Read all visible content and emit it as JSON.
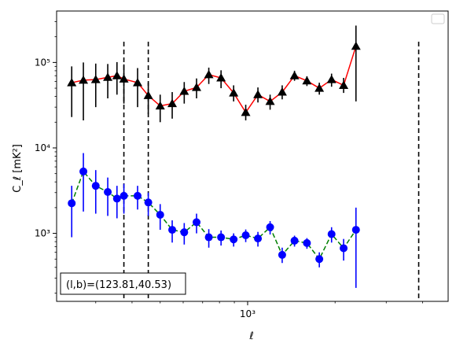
{
  "chart_data": {
    "type": "scatter",
    "xscale": "log",
    "yscale": "log",
    "xlabel": "ℓ",
    "ylabel": "C_ℓ  [mK²]",
    "xlim": [
      220,
      4900
    ],
    "ylim": [
      160,
      400000
    ],
    "xticks": [
      {
        "value": 1000,
        "label": "10³"
      }
    ],
    "yticks": [
      {
        "value": 1000,
        "label": "10³"
      },
      {
        "value": 10000,
        "label": "10⁴"
      },
      {
        "value": 100000,
        "label": "10⁵"
      }
    ],
    "legend": "top-right, empty",
    "vlines": [
      {
        "x": 375,
        "color": "#000000",
        "style": "dashed"
      },
      {
        "x": 455,
        "color": "#000000",
        "style": "dashed"
      },
      {
        "x": 3880,
        "color": "#000000",
        "style": "dashed"
      }
    ],
    "series": [
      {
        "marker": "triangle",
        "marker_color": "#000000",
        "line_color": "#ff0000",
        "line_style": "solid",
        "error_color": "#000000",
        "points": [
          {
            "x": 248,
            "y": 58000,
            "ylo": 23000,
            "yhi": 90000
          },
          {
            "x": 272,
            "y": 62000,
            "ylo": 21000,
            "yhi": 100000
          },
          {
            "x": 300,
            "y": 63000,
            "ylo": 30000,
            "yhi": 97000
          },
          {
            "x": 330,
            "y": 67000,
            "ylo": 38000,
            "yhi": 96000
          },
          {
            "x": 355,
            "y": 70000,
            "ylo": 42000,
            "yhi": 101000
          },
          {
            "x": 375,
            "y": 64000,
            "ylo": 33000,
            "yhi": 95000
          },
          {
            "x": 418,
            "y": 58000,
            "ylo": 30000,
            "yhi": 86000
          },
          {
            "x": 455,
            "y": 41000,
            "ylo": 25000,
            "yhi": 58000
          },
          {
            "x": 500,
            "y": 31000,
            "ylo": 20000,
            "yhi": 42000
          },
          {
            "x": 550,
            "y": 33000,
            "ylo": 22000,
            "yhi": 45000
          },
          {
            "x": 605,
            "y": 46000,
            "ylo": 33000,
            "yhi": 59000
          },
          {
            "x": 667,
            "y": 51000,
            "ylo": 38000,
            "yhi": 65000
          },
          {
            "x": 735,
            "y": 72000,
            "ylo": 56000,
            "yhi": 87000
          },
          {
            "x": 810,
            "y": 66000,
            "ylo": 50000,
            "yhi": 81000
          },
          {
            "x": 895,
            "y": 44000,
            "ylo": 35000,
            "yhi": 54000
          },
          {
            "x": 985,
            "y": 26000,
            "ylo": 21000,
            "yhi": 32000
          },
          {
            "x": 1085,
            "y": 42000,
            "ylo": 34000,
            "yhi": 51000
          },
          {
            "x": 1195,
            "y": 35000,
            "ylo": 28000,
            "yhi": 42000
          },
          {
            "x": 1315,
            "y": 45000,
            "ylo": 37000,
            "yhi": 54000
          },
          {
            "x": 1450,
            "y": 70000,
            "ylo": 61000,
            "yhi": 80000
          },
          {
            "x": 1600,
            "y": 61000,
            "ylo": 53000,
            "yhi": 69000
          },
          {
            "x": 1765,
            "y": 50000,
            "ylo": 42000,
            "yhi": 58000
          },
          {
            "x": 1945,
            "y": 63000,
            "ylo": 52000,
            "yhi": 74000
          },
          {
            "x": 2140,
            "y": 54000,
            "ylo": 44000,
            "yhi": 66000
          },
          {
            "x": 2360,
            "y": 155000,
            "ylo": 35000,
            "yhi": 270000
          }
        ]
      },
      {
        "marker": "circle",
        "marker_color": "#0000ff",
        "line_color": "#008000",
        "line_style": "dashed",
        "error_color": "#0000ff",
        "points": [
          {
            "x": 248,
            "y": 2250,
            "ylo": 900,
            "yhi": 3600
          },
          {
            "x": 272,
            "y": 5300,
            "ylo": 1800,
            "yhi": 8700
          },
          {
            "x": 300,
            "y": 3600,
            "ylo": 1700,
            "yhi": 5500
          },
          {
            "x": 330,
            "y": 3050,
            "ylo": 1600,
            "yhi": 4500
          },
          {
            "x": 355,
            "y": 2550,
            "ylo": 1500,
            "yhi": 3600
          },
          {
            "x": 375,
            "y": 2750,
            "ylo": 1700,
            "yhi": 3800
          },
          {
            "x": 418,
            "y": 2750,
            "ylo": 1900,
            "yhi": 3600
          },
          {
            "x": 455,
            "y": 2300,
            "ylo": 1600,
            "yhi": 3000
          },
          {
            "x": 500,
            "y": 1650,
            "ylo": 1100,
            "yhi": 2200
          },
          {
            "x": 550,
            "y": 1100,
            "ylo": 780,
            "yhi": 1420
          },
          {
            "x": 605,
            "y": 1030,
            "ylo": 740,
            "yhi": 1320
          },
          {
            "x": 667,
            "y": 1350,
            "ylo": 1000,
            "yhi": 1700
          },
          {
            "x": 735,
            "y": 900,
            "ylo": 680,
            "yhi": 1120
          },
          {
            "x": 810,
            "y": 900,
            "ylo": 720,
            "yhi": 1080
          },
          {
            "x": 895,
            "y": 850,
            "ylo": 700,
            "yhi": 1000
          },
          {
            "x": 985,
            "y": 950,
            "ylo": 790,
            "yhi": 1110
          },
          {
            "x": 1085,
            "y": 870,
            "ylo": 700,
            "yhi": 1040
          },
          {
            "x": 1195,
            "y": 1180,
            "ylo": 970,
            "yhi": 1390
          },
          {
            "x": 1315,
            "y": 560,
            "ylo": 450,
            "yhi": 680
          },
          {
            "x": 1450,
            "y": 820,
            "ylo": 700,
            "yhi": 940
          },
          {
            "x": 1600,
            "y": 770,
            "ylo": 660,
            "yhi": 880
          },
          {
            "x": 1765,
            "y": 500,
            "ylo": 400,
            "yhi": 600
          },
          {
            "x": 1945,
            "y": 980,
            "ylo": 780,
            "yhi": 1180
          },
          {
            "x": 2140,
            "y": 670,
            "ylo": 480,
            "yhi": 860
          },
          {
            "x": 2360,
            "y": 1100,
            "ylo": 230,
            "yhi": 2000
          }
        ]
      }
    ],
    "annotation": {
      "text": "(l,b)=(123.81,40.53)",
      "position": "bottom-left"
    }
  }
}
